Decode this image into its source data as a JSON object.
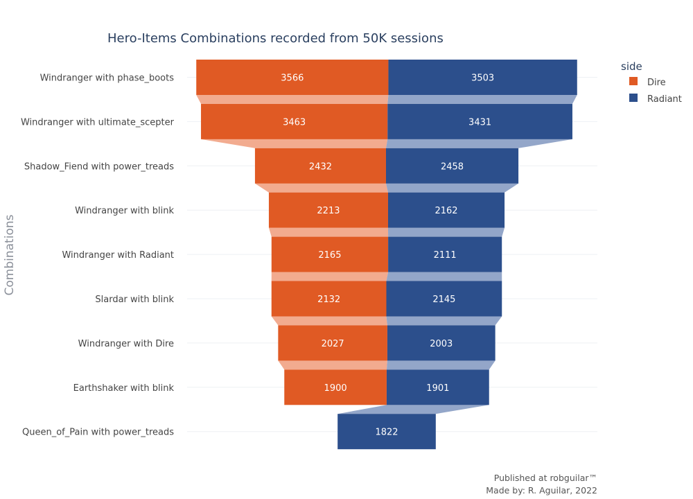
{
  "chart_data": {
    "type": "funnel",
    "title": "Hero-Items Combinations recorded from 50K sessions",
    "ylabel": "Combinations",
    "legend_title": "side",
    "legend_position": "top-right",
    "categories": [
      "Windranger with phase_boots",
      "Windranger with ultimate_scepter",
      "Shadow_Fiend with power_treads",
      "Windranger with blink",
      "Windranger with Radiant",
      "Slardar with blink",
      "Windranger with Dire",
      "Earthshaker with blink",
      "Queen_of_Pain with power_treads"
    ],
    "series": [
      {
        "name": "Dire",
        "color": "#e05a24",
        "connector_color": "#f2ab8f",
        "values": [
          3566,
          3463,
          2432,
          2213,
          2165,
          2132,
          2027,
          1900,
          null
        ]
      },
      {
        "name": "Radiant",
        "color": "#2c4f8c",
        "connector_color": "#93a6c9",
        "values": [
          3503,
          3431,
          2458,
          2162,
          2111,
          2145,
          2003,
          1901,
          1822
        ]
      }
    ]
  },
  "footer": {
    "line1": "Published at robguilar™",
    "line2": "Made by:  R. Aguilar, 2022"
  }
}
